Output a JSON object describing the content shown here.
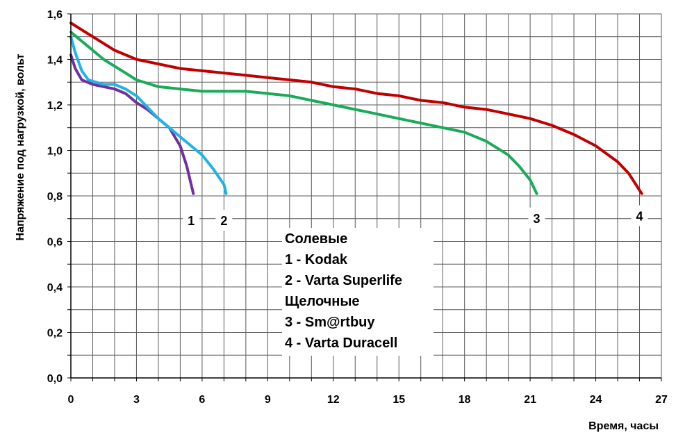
{
  "chart_data": {
    "type": "line",
    "xlabel": "Время, часы",
    "ylabel": "Напряжение под нагрузкой, вольт",
    "xlim": [
      0,
      27
    ],
    "ylim": [
      0,
      1.6
    ],
    "x_ticks": [
      "0",
      "3",
      "6",
      "9",
      "12",
      "15",
      "18",
      "21",
      "24",
      "27"
    ],
    "y_ticks": [
      "0,0",
      "0,2",
      "0,4",
      "0,6",
      "0,8",
      "1,0",
      "1,2",
      "1,4",
      "1,6"
    ],
    "grid": true,
    "series": [
      {
        "name": "1",
        "color": "#7030a0",
        "points": [
          [
            0,
            1.42
          ],
          [
            0.2,
            1.36
          ],
          [
            0.5,
            1.31
          ],
          [
            1,
            1.29
          ],
          [
            1.5,
            1.28
          ],
          [
            2,
            1.27
          ],
          [
            2.5,
            1.25
          ],
          [
            3,
            1.21
          ],
          [
            3.5,
            1.18
          ],
          [
            4,
            1.14
          ],
          [
            4.5,
            1.1
          ],
          [
            5,
            1.02
          ],
          [
            5.3,
            0.93
          ],
          [
            5.6,
            0.81
          ]
        ]
      },
      {
        "name": "2",
        "color": "#1fb4e4",
        "points": [
          [
            0,
            1.5
          ],
          [
            0.2,
            1.43
          ],
          [
            0.5,
            1.35
          ],
          [
            0.8,
            1.31
          ],
          [
            1.5,
            1.29
          ],
          [
            2,
            1.29
          ],
          [
            2.5,
            1.27
          ],
          [
            3,
            1.24
          ],
          [
            3.5,
            1.19
          ],
          [
            4,
            1.14
          ],
          [
            4.5,
            1.1
          ],
          [
            5,
            1.06
          ],
          [
            5.5,
            1.02
          ],
          [
            6,
            0.98
          ],
          [
            6.5,
            0.92
          ],
          [
            7,
            0.85
          ],
          [
            7.1,
            0.81
          ]
        ]
      },
      {
        "name": "3",
        "color": "#1aab58",
        "points": [
          [
            0,
            1.52
          ],
          [
            0.5,
            1.48
          ],
          [
            1,
            1.44
          ],
          [
            1.5,
            1.4
          ],
          [
            2,
            1.37
          ],
          [
            2.5,
            1.34
          ],
          [
            3,
            1.31
          ],
          [
            4,
            1.28
          ],
          [
            5,
            1.27
          ],
          [
            6,
            1.26
          ],
          [
            7,
            1.26
          ],
          [
            8,
            1.26
          ],
          [
            9,
            1.25
          ],
          [
            10,
            1.24
          ],
          [
            11,
            1.22
          ],
          [
            12,
            1.2
          ],
          [
            13,
            1.18
          ],
          [
            14,
            1.16
          ],
          [
            15,
            1.14
          ],
          [
            16,
            1.12
          ],
          [
            17,
            1.1
          ],
          [
            18,
            1.08
          ],
          [
            19,
            1.04
          ],
          [
            20,
            0.98
          ],
          [
            20.5,
            0.93
          ],
          [
            21,
            0.87
          ],
          [
            21.3,
            0.81
          ]
        ]
      },
      {
        "name": "4",
        "color": "#c00000",
        "points": [
          [
            0,
            1.56
          ],
          [
            0.5,
            1.53
          ],
          [
            1,
            1.5
          ],
          [
            1.5,
            1.47
          ],
          [
            2,
            1.44
          ],
          [
            3,
            1.4
          ],
          [
            4,
            1.38
          ],
          [
            5,
            1.36
          ],
          [
            6,
            1.35
          ],
          [
            7,
            1.34
          ],
          [
            8,
            1.33
          ],
          [
            9,
            1.32
          ],
          [
            10,
            1.31
          ],
          [
            11,
            1.3
          ],
          [
            12,
            1.28
          ],
          [
            13,
            1.27
          ],
          [
            14,
            1.25
          ],
          [
            15,
            1.24
          ],
          [
            16,
            1.22
          ],
          [
            17,
            1.21
          ],
          [
            18,
            1.19
          ],
          [
            19,
            1.18
          ],
          [
            20,
            1.16
          ],
          [
            21,
            1.14
          ],
          [
            22,
            1.11
          ],
          [
            23,
            1.07
          ],
          [
            24,
            1.02
          ],
          [
            25,
            0.95
          ],
          [
            25.5,
            0.9
          ],
          [
            26.1,
            0.81
          ]
        ]
      }
    ],
    "series_labels": [
      {
        "text": "1",
        "x": 5.5,
        "y": 0.69
      },
      {
        "text": "2",
        "x": 7,
        "y": 0.69
      },
      {
        "text": "3",
        "x": 21.3,
        "y": 0.7
      },
      {
        "text": "4",
        "x": 26,
        "y": 0.71
      }
    ],
    "legend_lines": [
      "Солевые",
      "1 - Kodak",
      "2 - Varta Superlife",
      "Щелочные",
      "3 - Sm@rtbuy",
      "4 - Varta Duracell"
    ]
  }
}
